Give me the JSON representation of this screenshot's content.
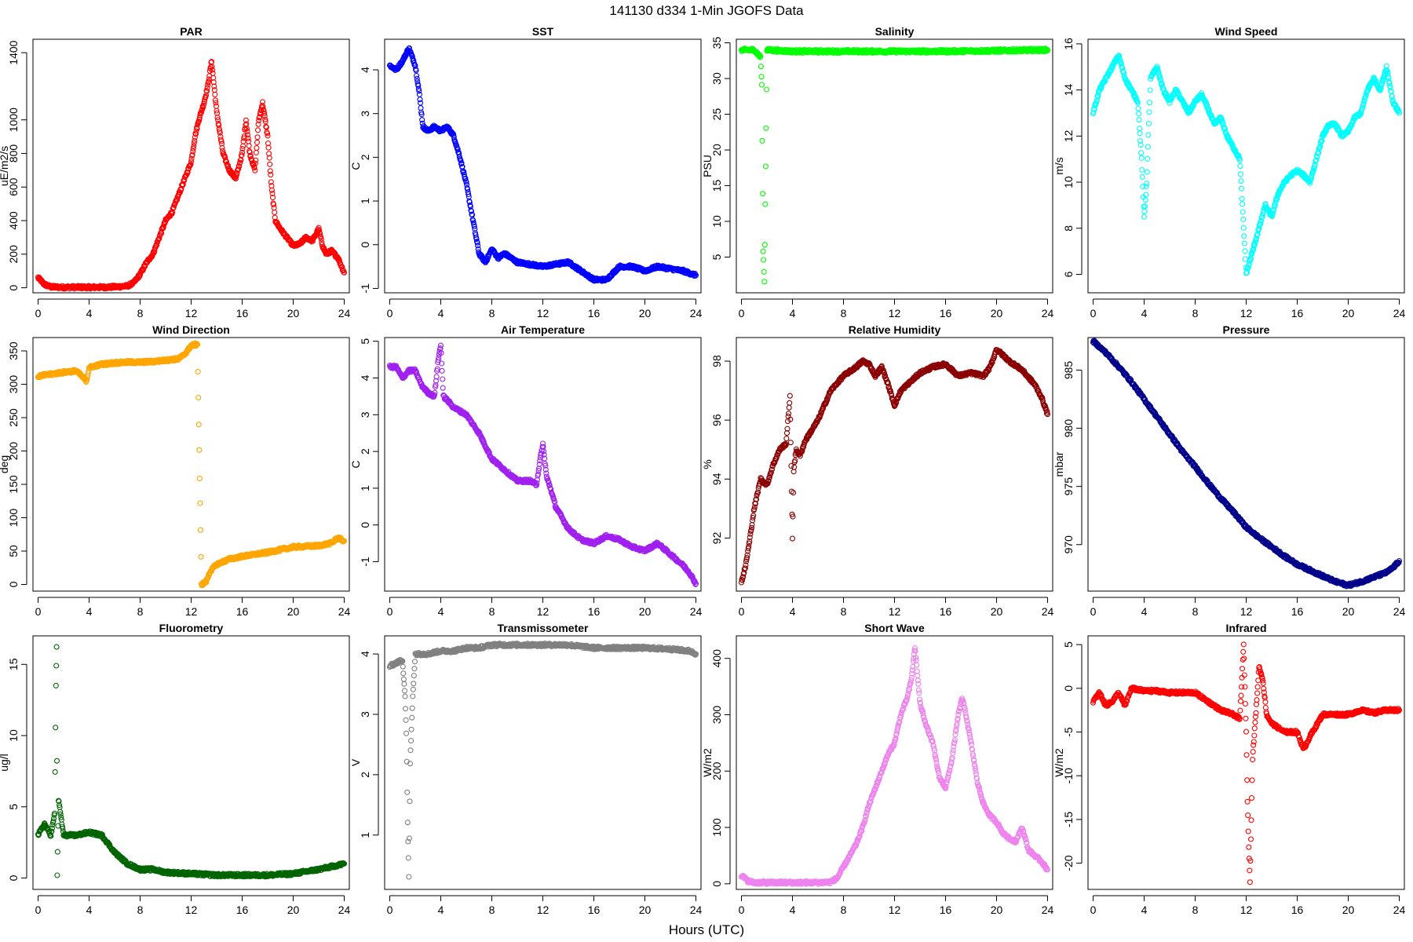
{
  "figure": {
    "title": "141130   d334   1-Min  JGOFS Data",
    "xlabel": "Hours (UTC)"
  },
  "chart_data": [
    {
      "type": "scatter",
      "title": "PAR",
      "ylabel": "uE/m2/s",
      "color": "#ff0000",
      "xlim": [
        0,
        24
      ],
      "xticks": [
        0,
        4,
        8,
        12,
        16,
        20,
        24
      ],
      "ylim": [
        -30,
        1480
      ],
      "yticks": [
        0,
        200,
        400,
        600,
        800,
        1000,
        1400
      ],
      "x": [
        0,
        0.5,
        1,
        2,
        3,
        4,
        5,
        6,
        7,
        7.5,
        8,
        8.5,
        9,
        9.5,
        10,
        10.5,
        11,
        11.5,
        12,
        12.3,
        12.6,
        13,
        13.3,
        13.6,
        14,
        14.5,
        15,
        15.5,
        16,
        16.3,
        16.6,
        17,
        17.3,
        17.6,
        18,
        18.3,
        18.6,
        19,
        19.5,
        20,
        20.5,
        21,
        21.5,
        22,
        22.3,
        22.6,
        23,
        23.5,
        24
      ],
      "y": [
        60,
        20,
        5,
        3,
        3,
        3,
        3,
        5,
        10,
        30,
        80,
        150,
        200,
        300,
        400,
        450,
        550,
        650,
        750,
        900,
        1000,
        1100,
        1200,
        1350,
        1050,
        800,
        700,
        650,
        800,
        1000,
        800,
        700,
        1000,
        1100,
        900,
        600,
        400,
        350,
        300,
        250,
        260,
        300,
        280,
        350,
        250,
        200,
        220,
        180,
        90
      ]
    },
    {
      "type": "scatter",
      "title": "SST",
      "ylabel": "C",
      "color": "#0000ff",
      "xlim": [
        0,
        24
      ],
      "xticks": [
        0,
        4,
        8,
        12,
        16,
        20,
        24
      ],
      "ylim": [
        -1.1,
        4.7
      ],
      "yticks": [
        -1,
        0,
        1,
        2,
        3,
        4
      ],
      "x": [
        0,
        0.5,
        1,
        1.5,
        2,
        2.3,
        2.6,
        3,
        3.5,
        4,
        4.5,
        5,
        5.5,
        6,
        6.5,
        7,
        7.5,
        8,
        8.5,
        9,
        10,
        11,
        12,
        13,
        14,
        15,
        16,
        17,
        18,
        19,
        20,
        21,
        22,
        23,
        24
      ],
      "y": [
        4.1,
        4,
        4.2,
        4.5,
        4.1,
        3.5,
        2.7,
        2.6,
        2.7,
        2.6,
        2.7,
        2.5,
        2,
        1.4,
        0.6,
        -0.2,
        -0.4,
        -0.1,
        -0.3,
        -0.2,
        -0.4,
        -0.45,
        -0.5,
        -0.45,
        -0.4,
        -0.6,
        -0.8,
        -0.8,
        -0.5,
        -0.5,
        -0.6,
        -0.5,
        -0.55,
        -0.6,
        -0.7
      ]
    },
    {
      "type": "scatter",
      "title": "Salinity",
      "ylabel": "PSU",
      "color": "#00ff00",
      "xlim": [
        0,
        24
      ],
      "xticks": [
        0,
        4,
        8,
        12,
        16,
        20,
        24
      ],
      "ylim": [
        0,
        35.5
      ],
      "yticks": [
        5,
        10,
        15,
        20,
        25,
        30,
        35
      ],
      "x": [
        0,
        1,
        1.5,
        1.6,
        1.7,
        1.8,
        2,
        4,
        8,
        12,
        16,
        20,
        24
      ],
      "y": [
        34,
        34,
        33,
        29,
        6,
        1.5,
        34,
        33.8,
        33.8,
        33.8,
        33.8,
        33.9,
        34
      ]
    },
    {
      "type": "scatter",
      "title": "Wind Speed",
      "ylabel": "m/s",
      "color": "#00ffff",
      "xlim": [
        0,
        24
      ],
      "xticks": [
        0,
        4,
        8,
        12,
        16,
        20,
        24
      ],
      "ylim": [
        5.2,
        16.2
      ],
      "yticks": [
        6,
        8,
        10,
        12,
        14,
        16
      ],
      "x": [
        0,
        0.5,
        1,
        1.5,
        2,
        2.5,
        3,
        3.5,
        3.8,
        4,
        4.2,
        4.5,
        5,
        5.5,
        6,
        6.5,
        7,
        7.5,
        8,
        8.5,
        9,
        9.5,
        10,
        10.5,
        11,
        11.5,
        12,
        12.5,
        13,
        13.5,
        14,
        14.5,
        15,
        15.5,
        16,
        16.5,
        17,
        17.5,
        18,
        18.5,
        19,
        19.5,
        20,
        20.5,
        21,
        21.5,
        22,
        22.5,
        23,
        23.5,
        24
      ],
      "y": [
        13,
        14,
        14.5,
        15,
        15.5,
        14.5,
        14,
        13.5,
        11,
        8.5,
        10,
        14.5,
        15,
        14,
        13.5,
        14,
        13.5,
        13,
        13.5,
        13.8,
        13.2,
        12.5,
        12.8,
        12,
        11.5,
        11,
        6,
        7,
        8,
        9,
        8.5,
        9.5,
        10,
        10.3,
        10.5,
        10.3,
        10,
        11,
        12,
        12.5,
        12.5,
        12,
        12.2,
        12.8,
        13,
        14,
        14.5,
        14,
        15,
        13.5,
        13
      ]
    },
    {
      "type": "scatter",
      "title": "Wind Direction",
      "ylabel": "deg",
      "color": "#ffa500",
      "xlim": [
        0,
        24
      ],
      "xticks": [
        0,
        4,
        8,
        12,
        16,
        20,
        24
      ],
      "ylim": [
        -10,
        370
      ],
      "yticks": [
        0,
        50,
        100,
        150,
        200,
        250,
        300,
        350
      ],
      "x": [
        0,
        1,
        2,
        3,
        3.8,
        4,
        5,
        6,
        7,
        8,
        9,
        10,
        11,
        11.5,
        12,
        12.5,
        12.8,
        13,
        13.2,
        13.5,
        14,
        15,
        16,
        17,
        18,
        19,
        20,
        21,
        22,
        23,
        23.5,
        24
      ],
      "y": [
        312,
        315,
        318,
        320,
        305,
        325,
        330,
        332,
        333,
        333,
        334,
        336,
        338,
        345,
        358,
        360,
        0,
        2,
        5,
        20,
        30,
        38,
        42,
        45,
        48,
        52,
        56,
        57,
        58,
        62,
        70,
        65
      ]
    },
    {
      "type": "scatter",
      "title": "Air Temperature",
      "ylabel": "C",
      "color": "#a020f0",
      "xlim": [
        0,
        24
      ],
      "xticks": [
        0,
        4,
        8,
        12,
        16,
        20,
        24
      ],
      "ylim": [
        -1.8,
        5.1
      ],
      "yticks": [
        -1,
        0,
        1,
        2,
        3,
        4,
        5
      ],
      "x": [
        0,
        0.5,
        1,
        1.5,
        2,
        2.5,
        3,
        3.5,
        3.8,
        4,
        4.2,
        4.5,
        5,
        6,
        7,
        8,
        9,
        10,
        11,
        11.5,
        11.8,
        12,
        12.3,
        12.6,
        13,
        14,
        15,
        16,
        17,
        18,
        19,
        20,
        21,
        22,
        23,
        23.5,
        24
      ],
      "y": [
        4.3,
        4.3,
        4,
        4.2,
        4.2,
        3.8,
        3.6,
        3.5,
        4.5,
        4.9,
        3.5,
        3.4,
        3.2,
        3,
        2.5,
        1.8,
        1.5,
        1.2,
        1.2,
        1.1,
        1.8,
        2.2,
        1.3,
        1,
        0.5,
        -0.1,
        -0.4,
        -0.5,
        -0.3,
        -0.4,
        -0.6,
        -0.7,
        -0.5,
        -0.8,
        -1.1,
        -1.3,
        -1.6
      ]
    },
    {
      "type": "scatter",
      "title": "Relative Humidity",
      "ylabel": "%",
      "color": "#8b0000",
      "xlim": [
        0,
        24
      ],
      "xticks": [
        0,
        4,
        8,
        12,
        16,
        20,
        24
      ],
      "ylim": [
        90.2,
        98.8
      ],
      "yticks": [
        92,
        94,
        96,
        98
      ],
      "x": [
        0,
        0.3,
        0.6,
        1,
        1.5,
        2,
        2.5,
        3,
        3.5,
        3.8,
        4,
        4.1,
        4.3,
        4.6,
        5,
        6,
        7,
        8,
        9,
        9.5,
        10,
        10.5,
        11,
        11.5,
        12,
        12.5,
        13,
        14,
        15,
        16,
        17,
        18,
        19,
        19.5,
        20,
        20.5,
        21,
        22,
        23,
        23.5,
        24
      ],
      "y": [
        90.5,
        91,
        91.8,
        93,
        94,
        93.8,
        94.5,
        95,
        95.2,
        96.8,
        92,
        94.3,
        95,
        94.8,
        95.3,
        96,
        97,
        97.5,
        97.8,
        98,
        97.9,
        97.5,
        97.8,
        97.2,
        96.5,
        97,
        97.2,
        97.6,
        97.8,
        97.9,
        97.5,
        97.6,
        97.5,
        97.8,
        98.4,
        98.2,
        98,
        97.7,
        97.2,
        96.8,
        96.2
      ]
    },
    {
      "type": "scatter",
      "title": "Pressure",
      "ylabel": "mbar",
      "color": "#00008b",
      "xlim": [
        0,
        24
      ],
      "xticks": [
        0,
        4,
        8,
        12,
        16,
        20,
        24
      ],
      "ylim": [
        966,
        987.8
      ],
      "yticks": [
        970,
        975,
        980,
        985
      ],
      "x": [
        0,
        1,
        2,
        3,
        4,
        5,
        6,
        7,
        8,
        9,
        10,
        11,
        12,
        13,
        14,
        15,
        16,
        17,
        18,
        19,
        20,
        21,
        22,
        23,
        23.5,
        24
      ],
      "y": [
        987.5,
        986.5,
        985.3,
        984,
        982.5,
        981,
        979.5,
        978,
        976.7,
        975.3,
        974,
        972.8,
        971.5,
        970.6,
        969.8,
        969,
        968.3,
        967.8,
        967.3,
        966.8,
        966.5,
        966.8,
        967.2,
        967.6,
        968,
        968.6
      ]
    },
    {
      "type": "scatter",
      "title": "Fluorometry",
      "ylabel": "ug/l",
      "color": "#006400",
      "xlim": [
        0,
        24
      ],
      "xticks": [
        0,
        4,
        8,
        12,
        16,
        20,
        24
      ],
      "ylim": [
        -0.8,
        17
      ],
      "yticks": [
        0,
        5,
        10,
        15
      ],
      "x": [
        0,
        0.5,
        1,
        1.3,
        1.4,
        1.45,
        1.5,
        1.6,
        2,
        3,
        4,
        5,
        6,
        7,
        8,
        9,
        10,
        12,
        14,
        16,
        18,
        20,
        22,
        23.5,
        24
      ],
      "y": [
        3,
        3.8,
        3,
        4.5,
        13.5,
        16.3,
        0.1,
        5.5,
        3,
        3,
        3.2,
        3,
        1.8,
        1,
        0.6,
        0.6,
        0.4,
        0.3,
        0.2,
        0.2,
        0.2,
        0.3,
        0.6,
        0.9,
        1
      ]
    },
    {
      "type": "scatter",
      "title": "Transmissometer",
      "ylabel": "V",
      "color": "#808080",
      "xlim": [
        0,
        24
      ],
      "xticks": [
        0,
        4,
        8,
        12,
        16,
        20,
        24
      ],
      "ylim": [
        0.1,
        4.3
      ],
      "yticks": [
        1,
        2,
        3,
        4
      ],
      "x": [
        0,
        0.5,
        1,
        1.2,
        1.3,
        1.4,
        1.5,
        1.6,
        1.8,
        2,
        3,
        4,
        5,
        6,
        7,
        8,
        9,
        10,
        12,
        14,
        16,
        18,
        20,
        22,
        23.5,
        24
      ],
      "y": [
        3.8,
        3.85,
        3.9,
        3.3,
        2.7,
        1.2,
        0.3,
        2.2,
        3.3,
        4,
        4,
        4.05,
        4.05,
        4.1,
        4.1,
        4.15,
        4.15,
        4.15,
        4.15,
        4.15,
        4.1,
        4.1,
        4.1,
        4.08,
        4.05,
        4
      ]
    },
    {
      "type": "scatter",
      "title": "Short Wave",
      "ylabel": "W/m2",
      "color": "#ee82ee",
      "xlim": [
        0,
        24
      ],
      "xticks": [
        0,
        4,
        8,
        12,
        16,
        20,
        24
      ],
      "ylim": [
        -10,
        440
      ],
      "yticks": [
        0,
        100,
        200,
        300,
        400
      ],
      "x": [
        0,
        0.5,
        1,
        2,
        3,
        4,
        5,
        6,
        7,
        7.5,
        8,
        8.5,
        9,
        9.5,
        10,
        10.5,
        11,
        11.5,
        12,
        12.5,
        13,
        13.3,
        13.6,
        14,
        14.5,
        15,
        15.5,
        16,
        16.5,
        17,
        17.3,
        17.6,
        18,
        18.5,
        19,
        19.5,
        20,
        20.5,
        21,
        21.5,
        22,
        22.5,
        23,
        23.5,
        24
      ],
      "y": [
        15,
        5,
        2,
        2,
        2,
        2,
        2,
        2,
        3,
        10,
        30,
        50,
        70,
        100,
        140,
        170,
        200,
        230,
        250,
        300,
        330,
        360,
        420,
        320,
        280,
        250,
        190,
        170,
        220,
        300,
        330,
        300,
        250,
        180,
        140,
        120,
        110,
        90,
        80,
        75,
        100,
        60,
        50,
        40,
        25
      ]
    },
    {
      "type": "scatter",
      "title": "Infrared",
      "ylabel": "W/m2",
      "color": "#ff0000",
      "xlim": [
        0,
        24
      ],
      "xticks": [
        0,
        4,
        8,
        12,
        16,
        20,
        24
      ],
      "ylim": [
        -23,
        6
      ],
      "yticks": [
        -20,
        -15,
        -10,
        -5,
        0,
        5
      ],
      "x": [
        0,
        0.5,
        1,
        1.5,
        2,
        2.5,
        3,
        4,
        5,
        6,
        7,
        8,
        9,
        10,
        11,
        11.5,
        11.8,
        12,
        12.1,
        12.2,
        12.3,
        12.5,
        12.8,
        13,
        13.3,
        13.6,
        14,
        15,
        16,
        16.5,
        17,
        18,
        19,
        20,
        21,
        22,
        23,
        24
      ],
      "y": [
        -1.5,
        -0.5,
        -2,
        -1.5,
        -0.5,
        -2,
        0,
        -0.3,
        -0.3,
        -0.5,
        -0.5,
        -0.5,
        -1.5,
        -2.5,
        -3,
        -3.5,
        5,
        -5,
        -13,
        -18,
        -22,
        -8,
        -2,
        2.5,
        1,
        -3,
        -4,
        -5,
        -5,
        -7,
        -5.5,
        -3,
        -3,
        -3,
        -2.5,
        -2.8,
        -2.5,
        -2.5
      ]
    }
  ]
}
